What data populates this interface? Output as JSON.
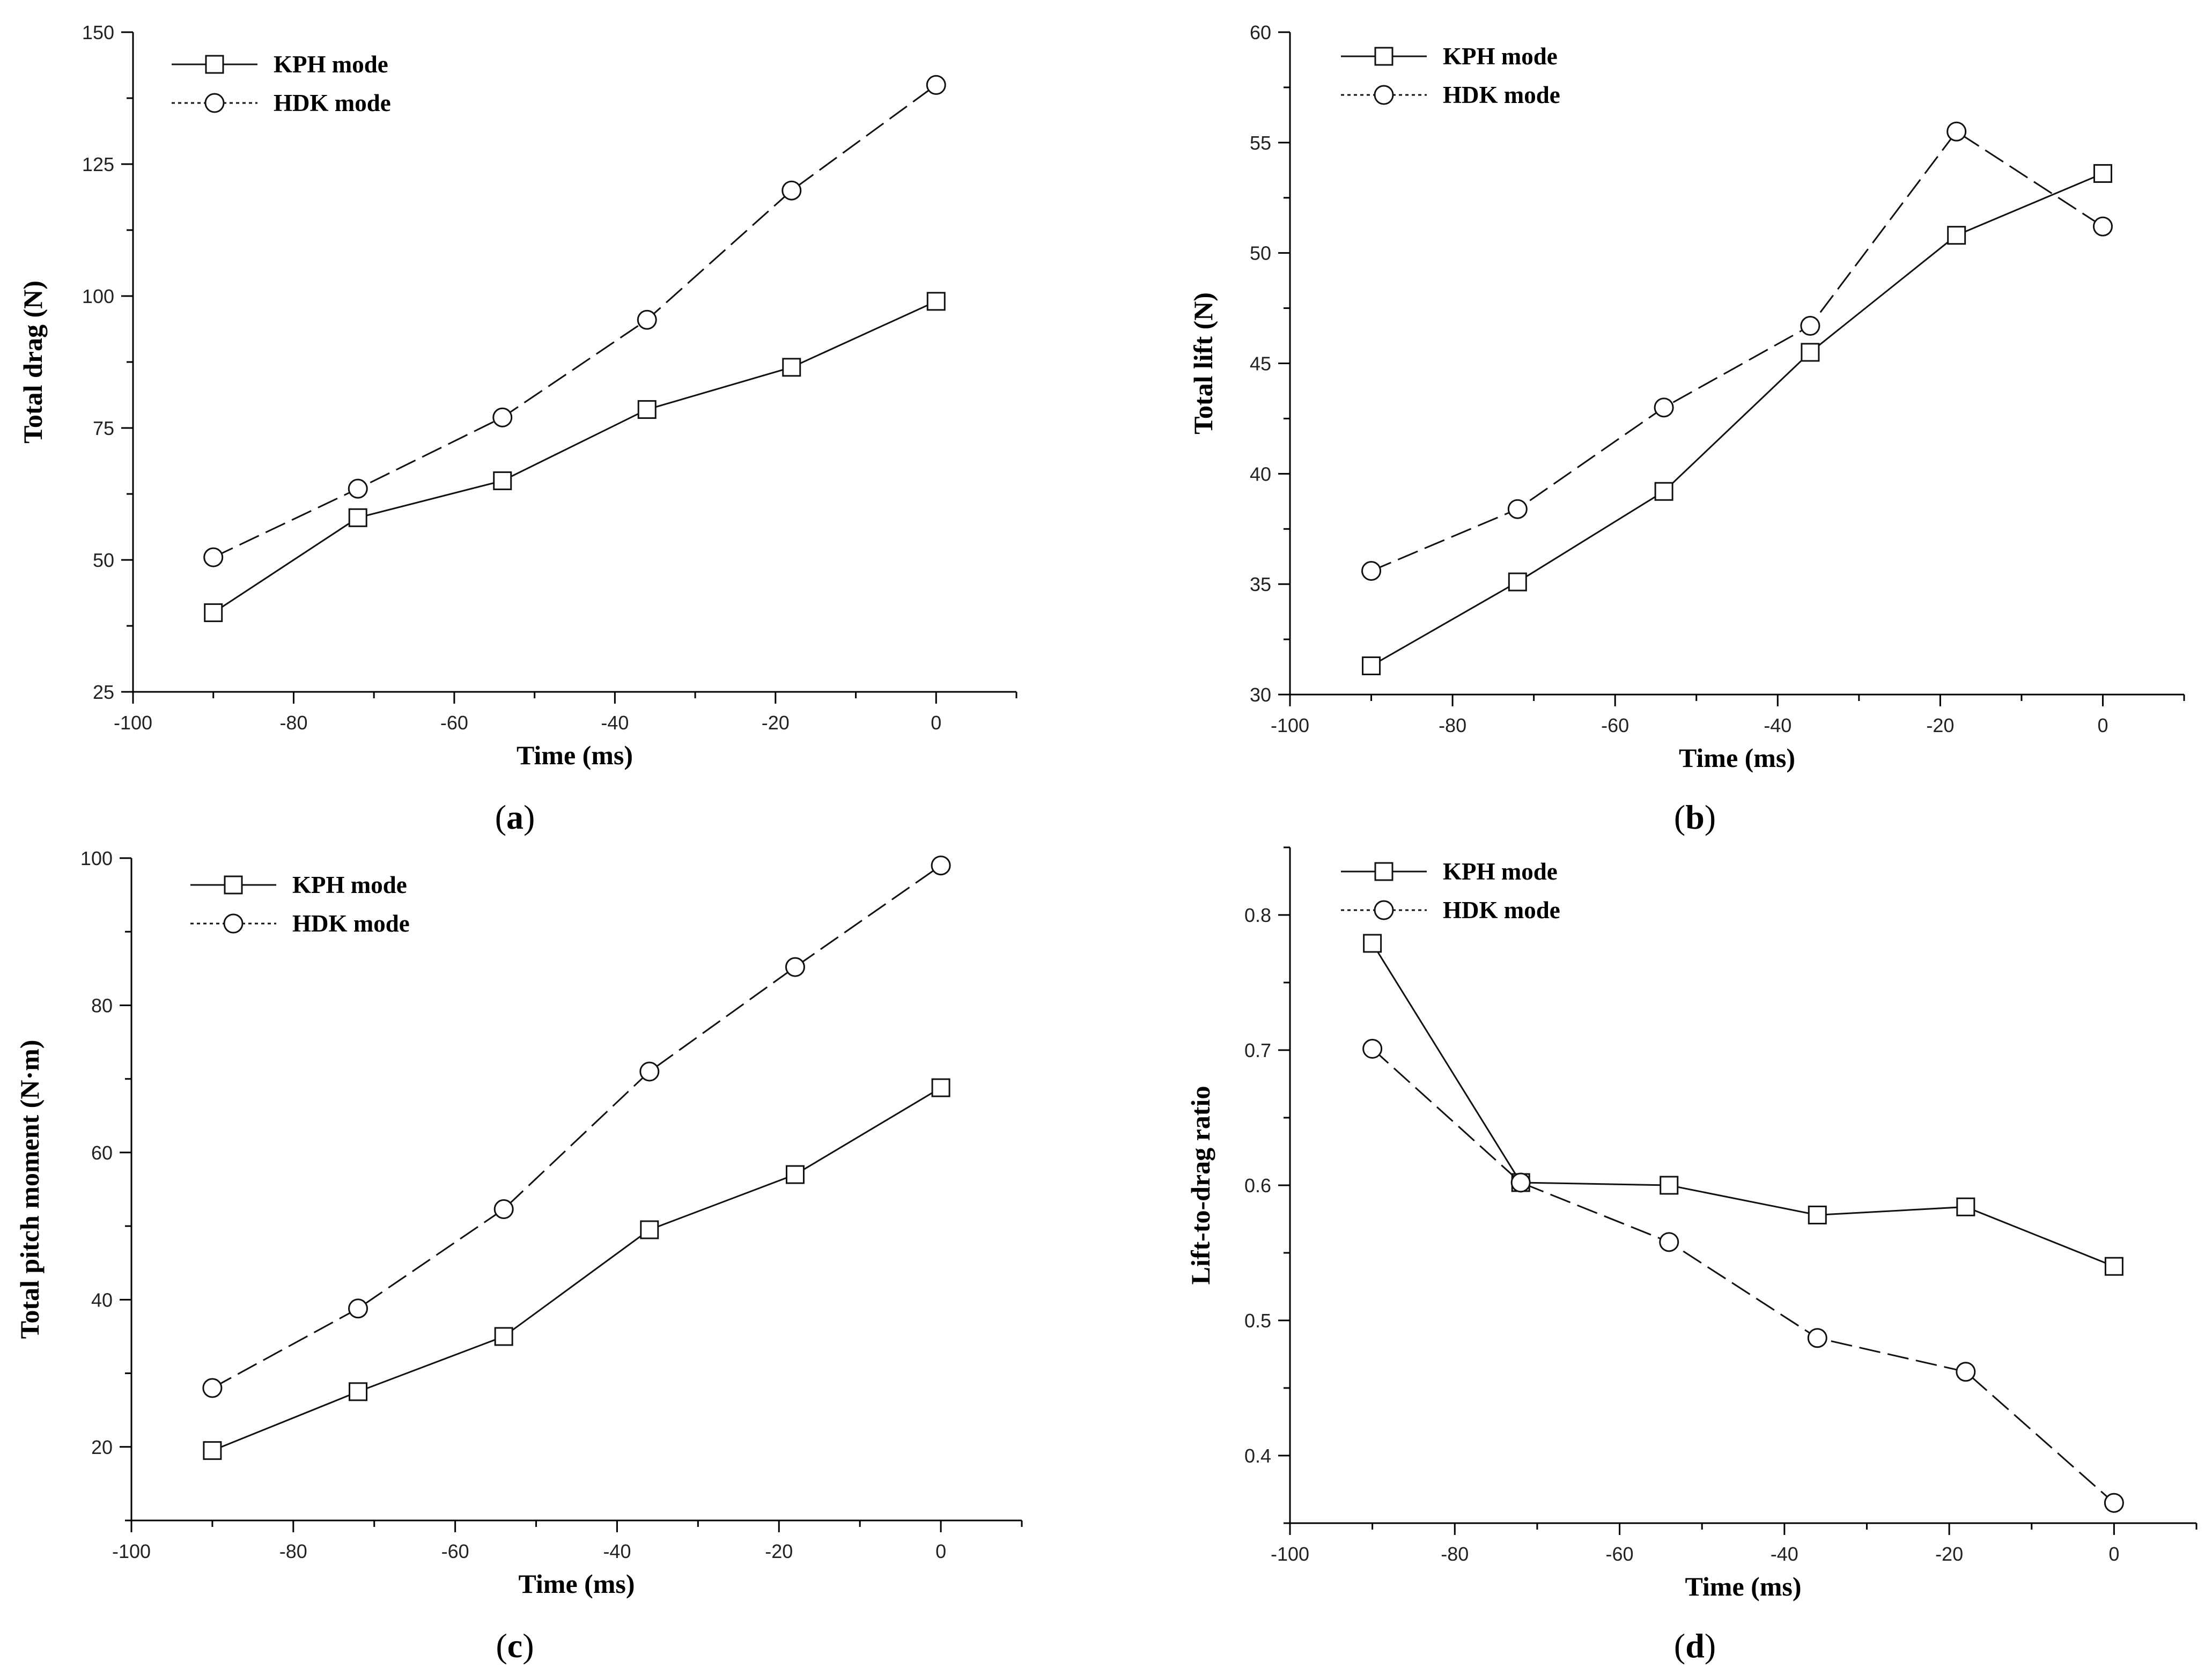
{
  "chart_data": [
    {
      "panel": "a",
      "panel_label": "a",
      "type": "line",
      "xlabel": "Time (ms)",
      "ylabel": "Total drag (N)",
      "xlim": [
        -100,
        10
      ],
      "ylim": [
        25,
        150
      ],
      "xticks": [
        -100,
        -80,
        -60,
        -40,
        -20,
        0
      ],
      "yticks": [
        25,
        50,
        75,
        100,
        125,
        150
      ],
      "legend_position": "top-left",
      "series": [
        {
          "name": "KPH mode",
          "marker": "square",
          "line": "solid",
          "x": [
            -90,
            -72,
            -54,
            -36,
            -18,
            0
          ],
          "y": [
            40,
            58,
            65,
            78.5,
            86.5,
            99
          ]
        },
        {
          "name": "HDK mode",
          "marker": "circle",
          "line": "dashed",
          "x": [
            -90,
            -72,
            -54,
            -36,
            -18,
            0
          ],
          "y": [
            50.5,
            63.5,
            77,
            95.5,
            120,
            140
          ]
        }
      ]
    },
    {
      "panel": "b",
      "panel_label": "b",
      "type": "line",
      "xlabel": "Time (ms)",
      "ylabel": "Total lift (N)",
      "xlim": [
        -100,
        10
      ],
      "ylim": [
        30,
        60
      ],
      "xticks": [
        -100,
        -80,
        -60,
        -40,
        -20,
        0
      ],
      "yticks": [
        30,
        35,
        40,
        45,
        50,
        55,
        60
      ],
      "legend_position": "top-left",
      "series": [
        {
          "name": "KPH mode",
          "marker": "square",
          "line": "solid",
          "x": [
            -90,
            -72,
            -54,
            -36,
            -18,
            0
          ],
          "y": [
            31.3,
            35.1,
            39.2,
            45.5,
            50.8,
            53.6
          ]
        },
        {
          "name": "HDK mode",
          "marker": "circle",
          "line": "dashed",
          "x": [
            -90,
            -72,
            -54,
            -36,
            -18,
            0
          ],
          "y": [
            35.6,
            38.4,
            43,
            46.7,
            55.5,
            51.2
          ]
        }
      ]
    },
    {
      "panel": "c",
      "panel_label": "c",
      "type": "line",
      "xlabel": "Time (ms)",
      "ylabel": "Total pitch moment (N·m)",
      "xlim": [
        -100,
        10
      ],
      "ylim": [
        10,
        100
      ],
      "xticks": [
        -100,
        -80,
        -60,
        -40,
        -20,
        0
      ],
      "yticks": [
        20,
        40,
        60,
        80,
        100
      ],
      "legend_position": "top-left",
      "series": [
        {
          "name": "KPH mode",
          "marker": "square",
          "line": "solid",
          "x": [
            -90,
            -72,
            -54,
            -36,
            -18,
            0
          ],
          "y": [
            19.5,
            27.5,
            35,
            49.5,
            57,
            68.8
          ]
        },
        {
          "name": "HDK mode",
          "marker": "circle",
          "line": "dashed",
          "x": [
            -90,
            -72,
            -54,
            -36,
            -18,
            0
          ],
          "y": [
            28,
            38.8,
            52.3,
            71,
            85.2,
            99
          ]
        }
      ]
    },
    {
      "panel": "d",
      "panel_label": "d",
      "type": "line",
      "xlabel": "Time (ms)",
      "ylabel": "Lift-to-drag ratio",
      "xlim": [
        -100,
        10
      ],
      "ylim": [
        0.35,
        0.85
      ],
      "xticks": [
        -100,
        -80,
        -60,
        -40,
        -20,
        0
      ],
      "yticks": [
        0.4,
        0.5,
        0.6,
        0.7,
        0.8
      ],
      "legend_position": "top-left",
      "series": [
        {
          "name": "KPH mode",
          "marker": "square",
          "line": "solid",
          "x": [
            -90,
            -72,
            -54,
            -36,
            -18,
            0
          ],
          "y": [
            0.779,
            0.602,
            0.6,
            0.578,
            0.584,
            0.54
          ]
        },
        {
          "name": "HDK mode",
          "marker": "circle",
          "line": "dashed",
          "x": [
            -90,
            -72,
            -54,
            -36,
            -18,
            0
          ],
          "y": [
            0.701,
            0.602,
            0.558,
            0.487,
            0.462,
            0.365
          ]
        }
      ]
    }
  ]
}
